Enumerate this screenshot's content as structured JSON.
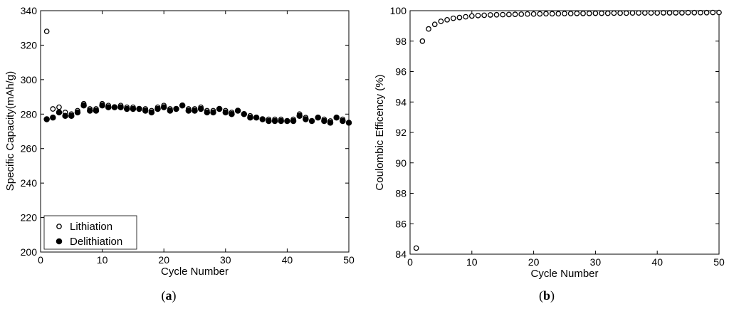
{
  "chart_data": [
    {
      "type": "scatter",
      "panel_label": "a",
      "xlabel": "Cycle Number",
      "ylabel": "Specific Capacity(mAh/g)",
      "xlim": [
        0,
        50
      ],
      "ylim": [
        200,
        340
      ],
      "xticks": [
        0,
        10,
        20,
        30,
        40,
        50
      ],
      "yticks": [
        200,
        220,
        240,
        260,
        280,
        300,
        320,
        340
      ],
      "grid": false,
      "legend_position": "bottom-left",
      "series": [
        {
          "name": "Lithiation",
          "marker": "open-circle",
          "x": [
            1,
            2,
            3,
            4,
            5,
            6,
            7,
            8,
            9,
            10,
            11,
            12,
            13,
            14,
            15,
            16,
            17,
            18,
            19,
            20,
            21,
            22,
            23,
            24,
            25,
            26,
            27,
            28,
            29,
            30,
            31,
            32,
            33,
            34,
            35,
            36,
            37,
            38,
            39,
            40,
            41,
            42,
            43,
            44,
            45,
            46,
            47,
            48,
            49,
            50
          ],
          "y": [
            328,
            283,
            284,
            281,
            280,
            282,
            286,
            283,
            283,
            286,
            285,
            284,
            285,
            284,
            284,
            283,
            283,
            282,
            284,
            285,
            283,
            283,
            285,
            283,
            283,
            284,
            282,
            282,
            283,
            282,
            281,
            282,
            280,
            279,
            278,
            277,
            277,
            277,
            277,
            276,
            277,
            280,
            278,
            276,
            278,
            277,
            276,
            278,
            277,
            275
          ]
        },
        {
          "name": "Delithiation",
          "marker": "filled-circle",
          "x": [
            1,
            2,
            3,
            4,
            5,
            6,
            7,
            8,
            9,
            10,
            11,
            12,
            13,
            14,
            15,
            16,
            17,
            18,
            19,
            20,
            21,
            22,
            23,
            24,
            25,
            26,
            27,
            28,
            29,
            30,
            31,
            32,
            33,
            34,
            35,
            36,
            37,
            38,
            39,
            40,
            41,
            42,
            43,
            44,
            45,
            46,
            47,
            48,
            49,
            50
          ],
          "y": [
            277,
            278,
            281,
            279,
            279,
            281,
            285,
            282,
            282,
            285,
            284,
            284,
            284,
            283,
            283,
            283,
            282,
            281,
            283,
            284,
            282,
            283,
            285,
            282,
            282,
            283,
            281,
            281,
            283,
            281,
            280,
            282,
            280,
            278,
            278,
            277,
            276,
            276,
            276,
            276,
            276,
            279,
            277,
            276,
            278,
            276,
            275,
            278,
            276,
            275
          ]
        }
      ]
    },
    {
      "type": "scatter",
      "panel_label": "b",
      "xlabel": "Cycle Number",
      "ylabel": "Coulombic Efficency (%)",
      "xlim": [
        0,
        50
      ],
      "ylim": [
        84,
        100
      ],
      "xticks": [
        0,
        10,
        20,
        30,
        40,
        50
      ],
      "yticks": [
        84,
        86,
        88,
        90,
        92,
        94,
        96,
        98,
        100
      ],
      "grid": false,
      "series": [
        {
          "marker": "open-circle",
          "x": [
            1,
            2,
            3,
            4,
            5,
            6,
            7,
            8,
            9,
            10,
            11,
            12,
            13,
            14,
            15,
            16,
            17,
            18,
            19,
            20,
            21,
            22,
            23,
            24,
            25,
            26,
            27,
            28,
            29,
            30,
            31,
            32,
            33,
            34,
            35,
            36,
            37,
            38,
            39,
            40,
            41,
            42,
            43,
            44,
            45,
            46,
            47,
            48,
            49,
            50
          ],
          "y": [
            84.4,
            98.0,
            98.8,
            99.1,
            99.3,
            99.4,
            99.5,
            99.55,
            99.6,
            99.65,
            99.68,
            99.7,
            99.72,
            99.73,
            99.74,
            99.75,
            99.76,
            99.77,
            99.78,
            99.78,
            99.79,
            99.8,
            99.8,
            99.8,
            99.81,
            99.81,
            99.82,
            99.82,
            99.82,
            99.83,
            99.83,
            99.83,
            99.84,
            99.84,
            99.84,
            99.85,
            99.85,
            99.85,
            99.85,
            99.85,
            99.86,
            99.86,
            99.86,
            99.86,
            99.87,
            99.87,
            99.87,
            99.87,
            99.88,
            99.88
          ]
        }
      ]
    }
  ]
}
